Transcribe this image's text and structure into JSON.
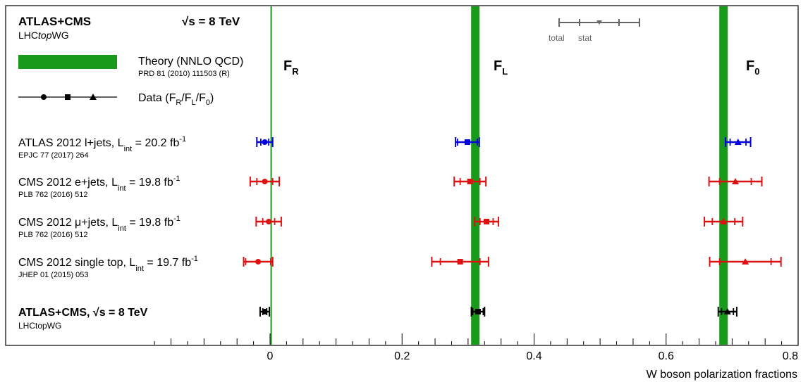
{
  "header": {
    "collab": "ATLAS+CMS",
    "group": "LHCtopWG",
    "energy": "√s = 8 TeV"
  },
  "legend": {
    "theory_label": "Theory (NNLO QCD)",
    "theory_ref": "PRD 81 (2010) 111503 (R)",
    "data_label": "Data (F",
    "data_label_R": "R",
    "data_label_L": "L",
    "data_label_0": "0",
    "total_label": "total",
    "stat_label": "stat"
  },
  "fraction_labels": {
    "FR": "F",
    "FR_sub": "R",
    "FL": "F",
    "FL_sub": "L",
    "F0": "F",
    "F0_sub": "0"
  },
  "colors": {
    "theory": "#1a9a1a",
    "atlas": "#0000dd",
    "cms": "#dd1111",
    "combined": "#000000",
    "legend_err": "#666666"
  },
  "chart_data": {
    "type": "scatter",
    "xlabel": "W boson polarization fractions",
    "xlim": [
      -0.4,
      0.8
    ],
    "xticks": [
      0,
      0.2,
      0.4,
      0.6,
      0.8
    ],
    "xtick_labels": [
      "0",
      "0.2",
      "0.4",
      "0.6",
      "0.8"
    ],
    "theory": {
      "FR": 0.0017,
      "FL": 0.311,
      "F0": 0.687
    },
    "measurements": [
      {
        "label": "ATLAS 2012 l+jets,  L",
        "lumi_sub": "int",
        "lumi_val": "= 20.2 fb",
        "lumi_sup": "-1",
        "ref": "EPJC 77 (2017) 264",
        "color": "atlas",
        "FR": [
          -0.008,
          0.006,
          0.012
        ],
        "FL": [
          0.299,
          0.015,
          0.018
        ],
        "F0": [
          0.709,
          0.012,
          0.019
        ]
      },
      {
        "label": "CMS 2012 e+jets,  L",
        "lumi_sub": "int",
        "lumi_val": "= 19.8 fb",
        "lumi_sup": "-1",
        "ref": "PLB 762 (2016) 512",
        "color": "cms",
        "FR": [
          -0.008,
          0.012,
          0.022
        ],
        "FL": [
          0.303,
          0.015,
          0.024
        ],
        "F0": [
          0.705,
          0.024,
          0.04
        ]
      },
      {
        "label": "CMS 2012 μ+jets,  L",
        "lumi_sub": "int",
        "lumi_val": "= 19.8 fb",
        "lumi_sup": "-1",
        "ref": "PLB 762 (2016) 512",
        "color": "cms",
        "FR": [
          -0.002,
          0.009,
          0.019
        ],
        "FL": [
          0.328,
          0.01,
          0.018
        ],
        "F0": [
          0.687,
          0.017,
          0.029
        ]
      },
      {
        "label": "CMS 2012 single top, L",
        "lumi_sub": "int",
        "lumi_val": "= 19.7 fb",
        "lumi_sup": "-1",
        "ref": "JHEP 01 (2015) 053",
        "color": "cms",
        "FR": [
          -0.018,
          0.019,
          0.022
        ],
        "FL": [
          0.288,
          0.03,
          0.043
        ],
        "F0": [
          0.72,
          0.039,
          0.054
        ]
      },
      {
        "label": "ATLAS+CMS,",
        "energy": "√s = 8 TeV",
        "ref": "LHCtopWG",
        "color": "combined",
        "combined": true,
        "FR": [
          -0.008,
          0.003,
          0.007
        ],
        "FL": [
          0.315,
          0.008,
          0.01
        ],
        "F0": [
          0.693,
          0.009,
          0.014
        ]
      }
    ]
  }
}
